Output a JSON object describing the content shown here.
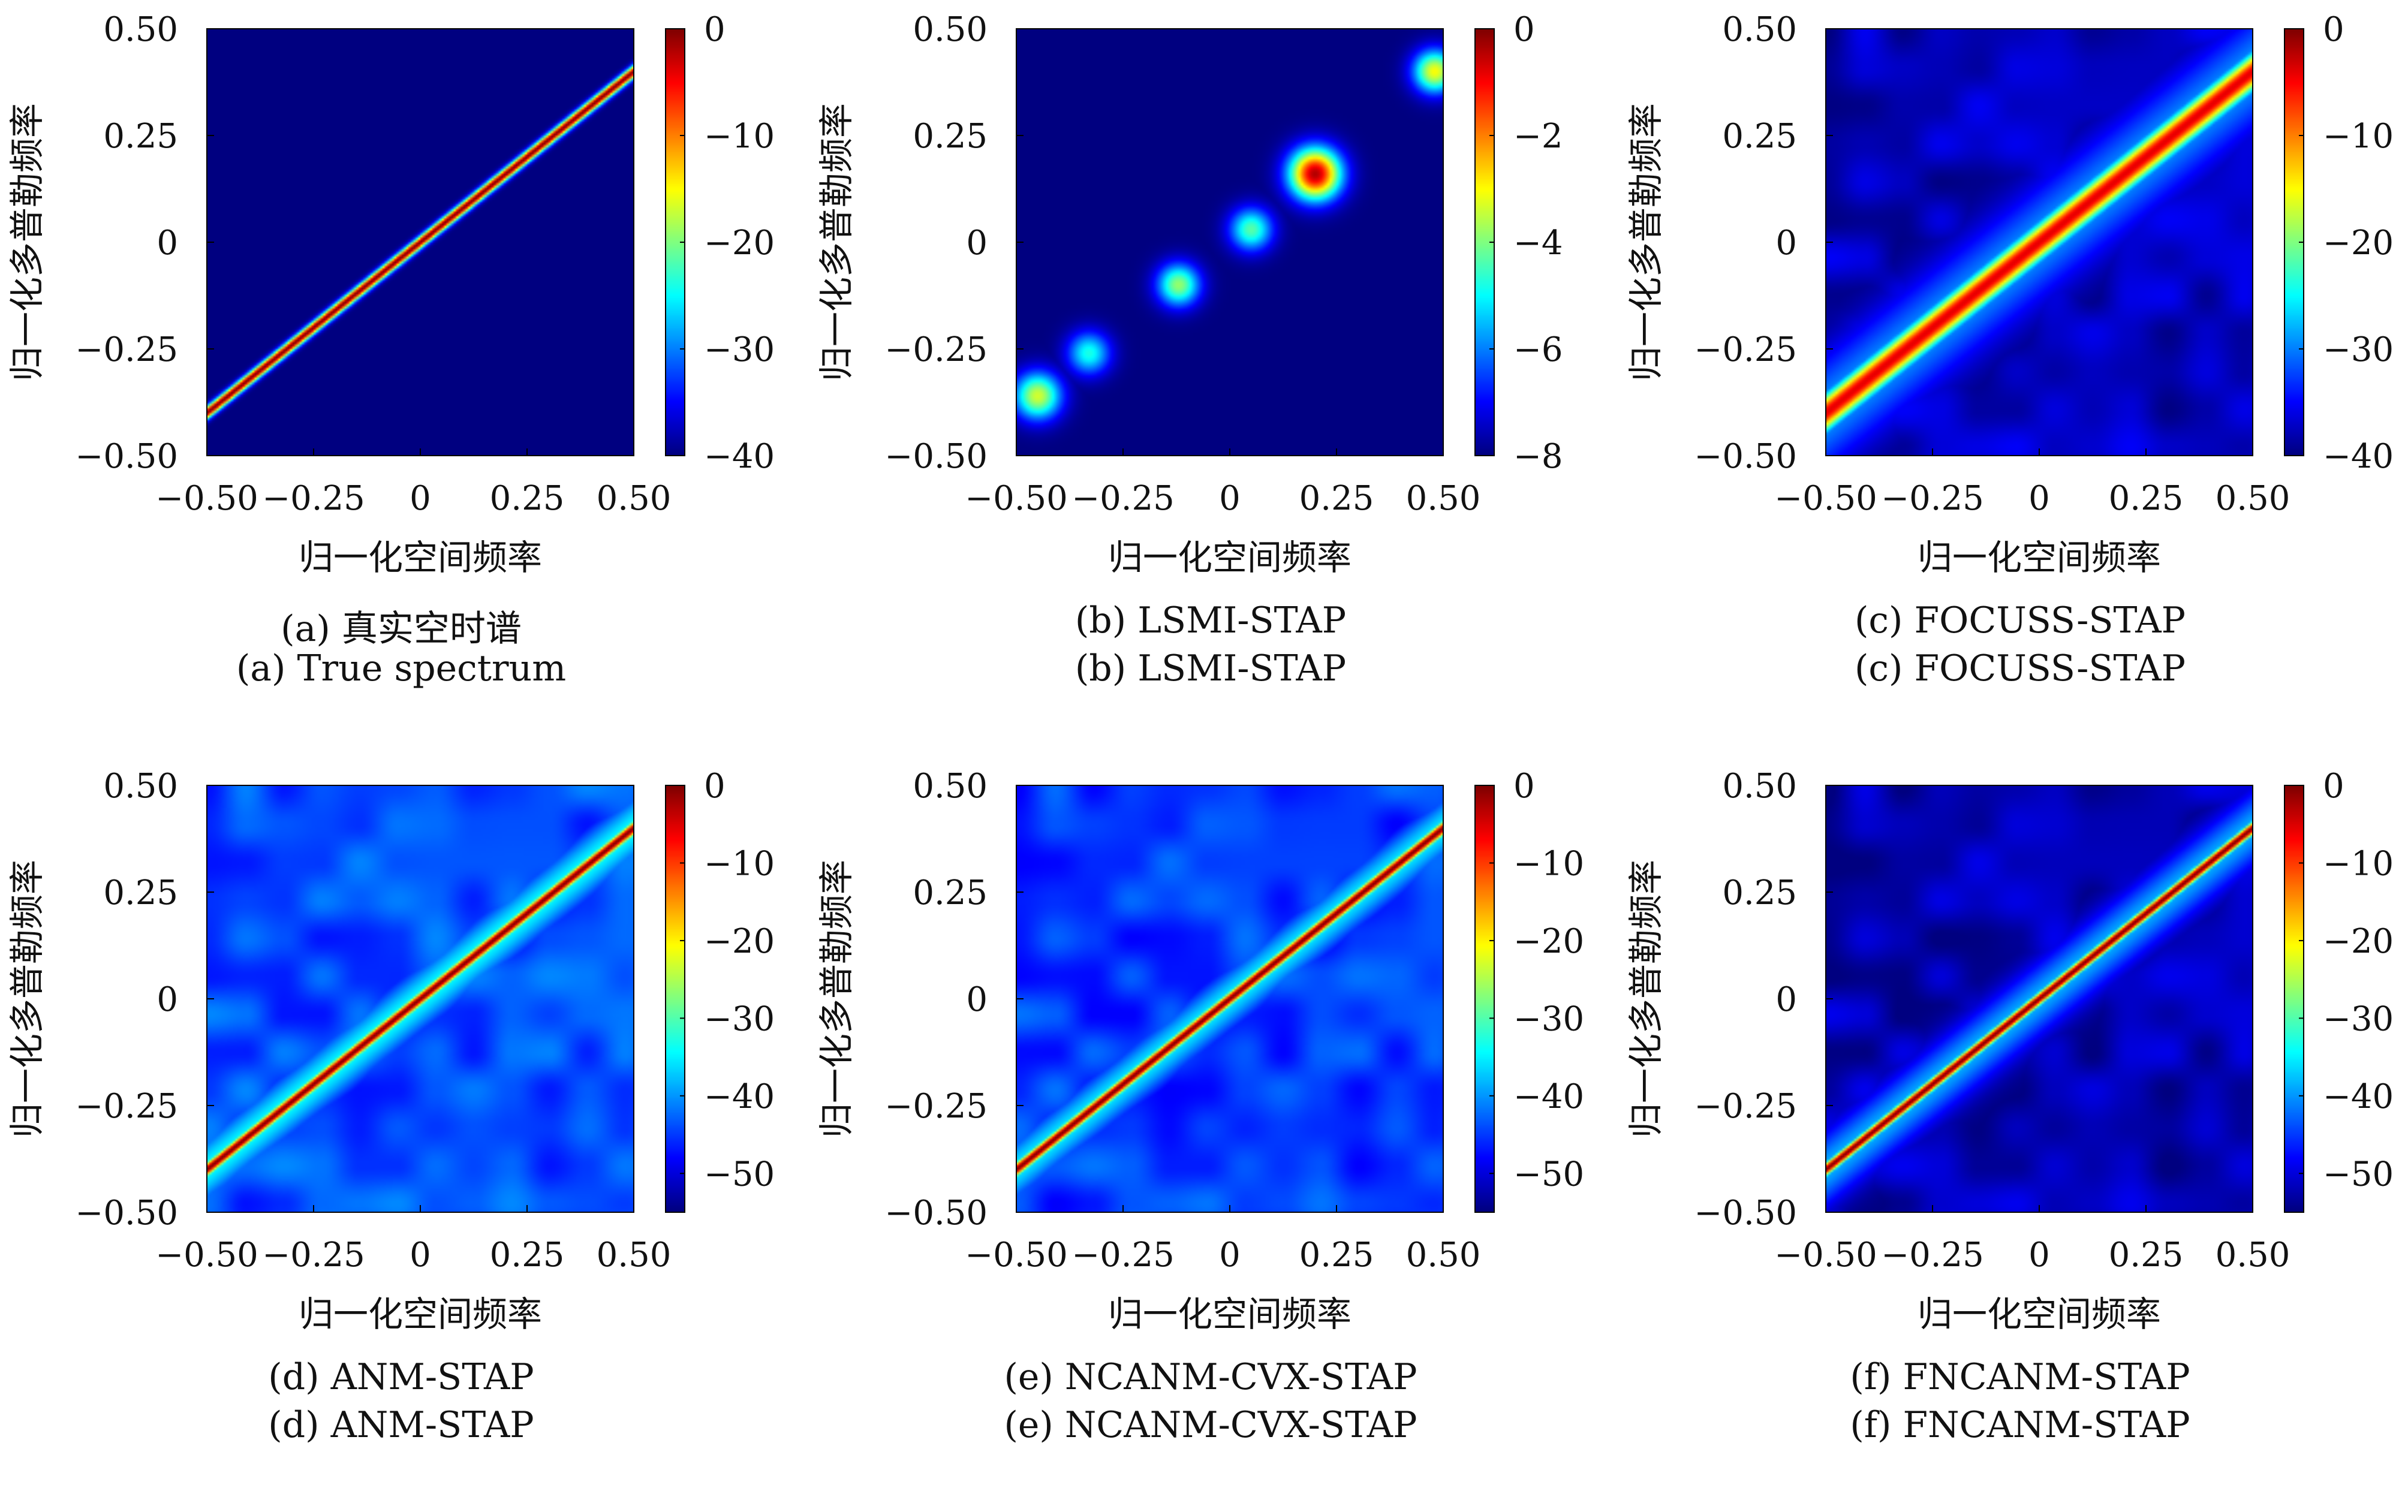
{
  "chart_data": [
    {
      "id": "a",
      "type": "heatmap",
      "caption_lines": [
        "(a) 真实空时谱",
        "(a) True spectrum"
      ],
      "xlabel": "归一化空间频率",
      "ylabel": "归一化多普勒频率",
      "xlim": [
        -0.5,
        0.5
      ],
      "ylim": [
        -0.5,
        0.5
      ],
      "xticks": [
        "−0.50",
        "−0.25",
        "0",
        "0.25",
        "0.50"
      ],
      "yticks": [
        "−0.50",
        "−0.25",
        "0",
        "0.25",
        "0.50"
      ],
      "colorbar": {
        "range": [
          -40,
          0
        ],
        "ticks": [
          "0",
          "−10",
          "−20",
          "−30",
          "−40"
        ]
      },
      "clutter_ridge": {
        "x": [
          -0.5,
          0.5
        ],
        "y": [
          -0.4,
          0.4
        ]
      },
      "appearance": {
        "ridge_width": 0.012,
        "blobs": [],
        "background_level": 0.0
      }
    },
    {
      "id": "b",
      "type": "heatmap",
      "caption_lines": [
        "(b) LSMI-STAP",
        "(b) LSMI-STAP"
      ],
      "xlabel": "归一化空间频率",
      "ylabel": "归一化多普勒频率",
      "xlim": [
        -0.5,
        0.5
      ],
      "ylim": [
        -0.5,
        0.5
      ],
      "xticks": [
        "−0.50",
        "−0.25",
        "0",
        "0.25",
        "0.50"
      ],
      "yticks": [
        "−0.50",
        "−0.25",
        "0",
        "0.25",
        "0.50"
      ],
      "colorbar": {
        "range": [
          -8,
          0
        ],
        "ticks": [
          "0",
          "−2",
          "−4",
          "−6",
          "−8"
        ]
      },
      "clutter_ridge": {
        "x": [
          -0.5,
          0.5
        ],
        "y": [
          -0.4,
          0.4
        ]
      },
      "appearance": {
        "ridge_width": 0.0,
        "background_level": 0.0,
        "blobs": [
          {
            "x": -0.45,
            "y": -0.36,
            "level": 0.58,
            "radius": 0.055
          },
          {
            "x": -0.33,
            "y": -0.26,
            "level": 0.4,
            "radius": 0.05
          },
          {
            "x": -0.12,
            "y": -0.1,
            "level": 0.52,
            "radius": 0.05
          },
          {
            "x": 0.05,
            "y": 0.03,
            "level": 0.46,
            "radius": 0.05
          },
          {
            "x": 0.2,
            "y": 0.16,
            "level": 0.95,
            "radius": 0.06
          },
          {
            "x": 0.48,
            "y": 0.4,
            "level": 0.62,
            "radius": 0.05
          }
        ]
      }
    },
    {
      "id": "c",
      "type": "heatmap",
      "caption_lines": [
        "(c) FOCUSS-STAP",
        "(c) FOCUSS-STAP"
      ],
      "xlabel": "归一化空间频率",
      "ylabel": "归一化多普勒频率",
      "xlim": [
        -0.5,
        0.5
      ],
      "ylim": [
        -0.5,
        0.5
      ],
      "xticks": [
        "−0.50",
        "−0.25",
        "0",
        "0.25",
        "0.50"
      ],
      "yticks": [
        "−0.50",
        "−0.25",
        "0",
        "0.25",
        "0.50"
      ],
      "colorbar": {
        "range": [
          -40,
          0
        ],
        "ticks": [
          "0",
          "−10",
          "−20",
          "−30",
          "−40"
        ]
      },
      "clutter_ridge": {
        "x": [
          -0.5,
          0.5
        ],
        "y": [
          -0.4,
          0.4
        ]
      },
      "appearance": {
        "ridge_width": 0.035,
        "ridge_level": 0.9,
        "background_level": 0.06,
        "halo_width": 0.11,
        "halo_level": 0.28,
        "blobs": []
      }
    },
    {
      "id": "d",
      "type": "heatmap",
      "caption_lines": [
        "(d) ANM-STAP",
        "(d) ANM-STAP"
      ],
      "xlabel": "归一化空间频率",
      "ylabel": "归一化多普勒频率",
      "xlim": [
        -0.5,
        0.5
      ],
      "ylim": [
        -0.5,
        0.5
      ],
      "xticks": [
        "−0.50",
        "−0.25",
        "0",
        "0.25",
        "0.50"
      ],
      "yticks": [
        "−0.50",
        "−0.25",
        "0",
        "0.25",
        "0.50"
      ],
      "colorbar": {
        "range": [
          -55,
          0
        ],
        "ticks": [
          "0",
          "−10",
          "−20",
          "−30",
          "−40",
          "−50"
        ]
      },
      "clutter_ridge": {
        "x": [
          -0.5,
          0.5
        ],
        "y": [
          -0.4,
          0.4
        ]
      },
      "appearance": {
        "ridge_width": 0.014,
        "background_level": 0.2,
        "halo_width": 0.07,
        "halo_level": 0.38,
        "blobs": []
      }
    },
    {
      "id": "e",
      "type": "heatmap",
      "caption_lines": [
        "(e) NCANM-CVX-STAP",
        "(e) NCANM-CVX-STAP"
      ],
      "xlabel": "归一化空间频率",
      "ylabel": "归一化多普勒频率",
      "xlim": [
        -0.5,
        0.5
      ],
      "ylim": [
        -0.5,
        0.5
      ],
      "xticks": [
        "−0.50",
        "−0.25",
        "0",
        "0.25",
        "0.50"
      ],
      "yticks": [
        "−0.50",
        "−0.25",
        "0",
        "0.25",
        "0.50"
      ],
      "colorbar": {
        "range": [
          -55,
          0
        ],
        "ticks": [
          "0",
          "−10",
          "−20",
          "−30",
          "−40",
          "−50"
        ]
      },
      "clutter_ridge": {
        "x": [
          -0.5,
          0.5
        ],
        "y": [
          -0.4,
          0.4
        ]
      },
      "appearance": {
        "ridge_width": 0.014,
        "background_level": 0.18,
        "halo_width": 0.065,
        "halo_level": 0.36,
        "blobs": []
      }
    },
    {
      "id": "f",
      "type": "heatmap",
      "caption_lines": [
        "(f) FNCANM-STAP",
        "(f) FNCANM-STAP"
      ],
      "xlabel": "归一化空间频率",
      "ylabel": "归一化多普勒频率",
      "xlim": [
        -0.5,
        0.5
      ],
      "ylim": [
        -0.5,
        0.5
      ],
      "xticks": [
        "−0.50",
        "−0.25",
        "0",
        "0.25",
        "0.50"
      ],
      "yticks": [
        "−0.50",
        "−0.25",
        "0",
        "0.25",
        "0.50"
      ],
      "colorbar": {
        "range": [
          -55,
          0
        ],
        "ticks": [
          "0",
          "−10",
          "−20",
          "−30",
          "−40",
          "−50"
        ]
      },
      "clutter_ridge": {
        "x": [
          -0.5,
          0.5
        ],
        "y": [
          -0.4,
          0.4
        ]
      },
      "appearance": {
        "ridge_width": 0.013,
        "background_level": 0.05,
        "halo_width": 0.07,
        "halo_level": 0.3,
        "blobs": []
      }
    }
  ]
}
